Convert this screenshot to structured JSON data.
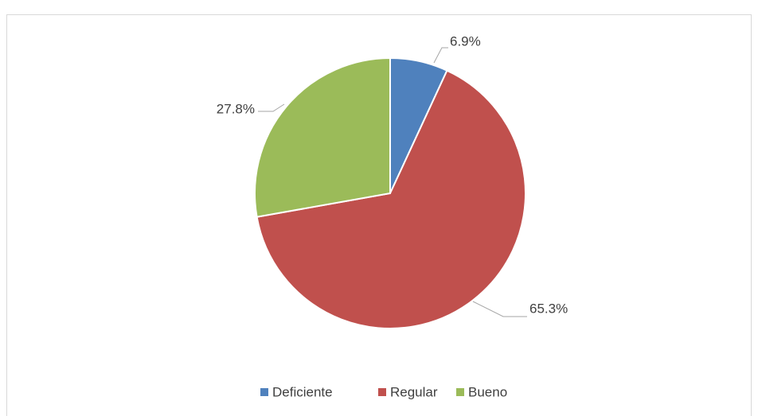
{
  "chart_data": {
    "type": "pie",
    "categories": [
      "Deficiente",
      "Regular",
      "Bueno"
    ],
    "values": [
      6.9,
      65.3,
      27.8
    ],
    "value_labels": [
      "6.9%",
      "65.3%",
      "27.8%"
    ],
    "colors": [
      "#4f81bd",
      "#c0504d",
      "#9bbb59"
    ],
    "legend": "bottom"
  }
}
